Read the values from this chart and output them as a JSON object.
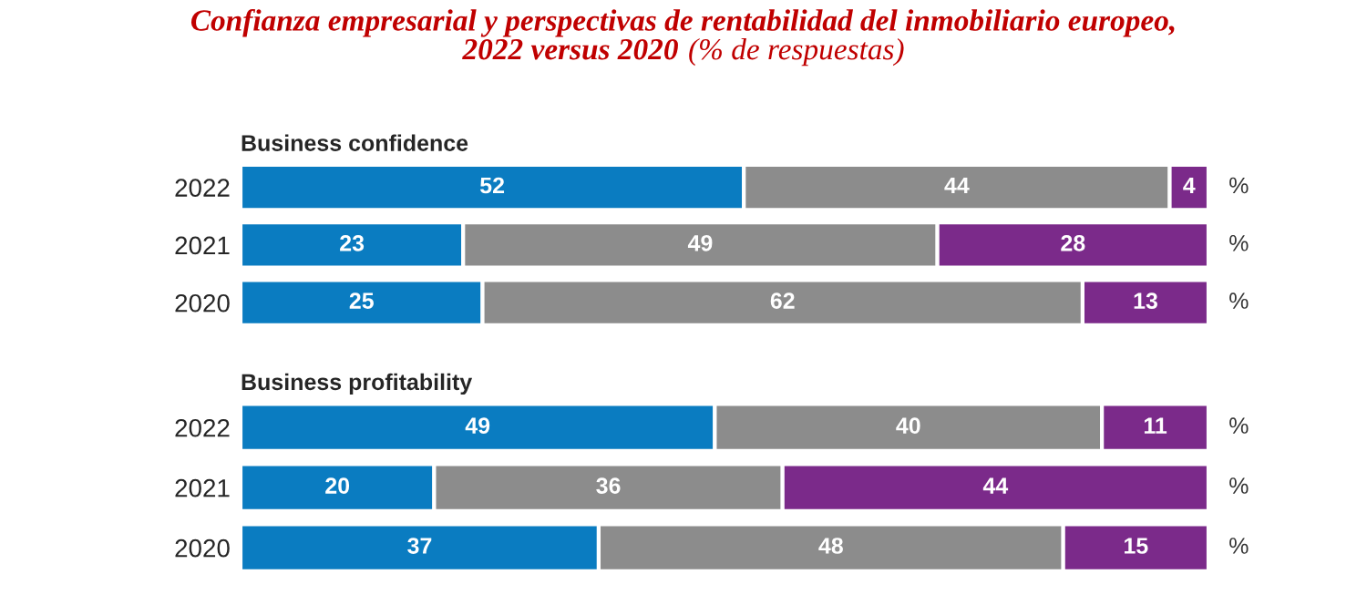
{
  "chart_data": [
    {
      "type": "bar",
      "title": "Confianza empresarial y perspectivas de rentabilidad del inmobiliario europeo,\n2022 versus 2020",
      "subtitle": "(% de respuestas)",
      "xlabel": "Business confidence",
      "orientation": "horizontal",
      "stacked": true,
      "data_labels": true,
      "tick_labels": "y",
      "categories": [
        "2022",
        "2021",
        "2020"
      ],
      "series": [
        {
          "color": "#0a7cc1",
          "values": [
            52,
            23,
            25
          ]
        },
        {
          "color": "#8c8c8c",
          "values": [
            44,
            49,
            62
          ]
        },
        {
          "color": "#7b2a8a",
          "values": [
            4,
            28,
            13
          ]
        }
      ],
      "annotations": [
        "%",
        "%",
        "%"
      ]
    },
    {
      "type": "bar",
      "xlabel": "Business profitability",
      "orientation": "horizontal",
      "stacked": true,
      "data_labels": true,
      "tick_labels": "y",
      "categories": [
        "2022",
        "2021",
        "2020"
      ],
      "series": [
        {
          "color": "#0a7cc1",
          "values": [
            49,
            20,
            37
          ]
        },
        {
          "color": "#8c8c8c",
          "values": [
            40,
            36,
            48
          ]
        },
        {
          "color": "#7b2a8a",
          "values": [
            11,
            44,
            15
          ]
        }
      ],
      "annotations": [
        "%",
        "%",
        "%"
      ]
    }
  ]
}
